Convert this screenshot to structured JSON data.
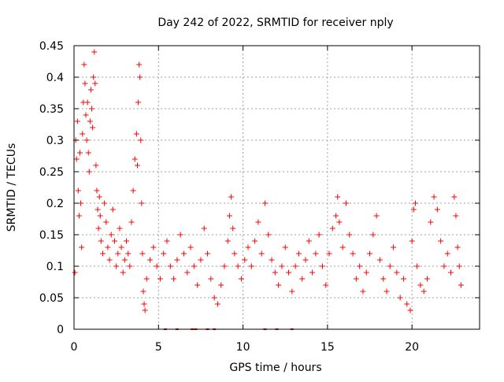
{
  "chart_data": {
    "type": "scatter",
    "title": "Day 242 of 2022, SRMTID for receiver nply",
    "xlabel": "GPS time / hours",
    "ylabel": "SRMTID / TECUs",
    "xlim": [
      0,
      24
    ],
    "ylim": [
      0,
      0.45
    ],
    "xticks": [
      0,
      5,
      10,
      15,
      20
    ],
    "xtick_labels": [
      "0",
      "5",
      "10",
      "15",
      "20"
    ],
    "yticks": [
      0,
      0.05,
      0.1,
      0.15,
      0.2,
      0.25,
      0.3,
      0.35,
      0.4,
      0.45
    ],
    "ytick_labels": [
      "0",
      "0.05",
      "0.1",
      "0.15",
      "0.2",
      "0.25",
      "0.3",
      "0.35",
      "0.4",
      "0.45"
    ],
    "grid": true,
    "marker": "+",
    "color": "#ff0000",
    "series": [
      {
        "name": "SRMTID",
        "points": [
          [
            0.05,
            0.09
          ],
          [
            0.1,
            0.3
          ],
          [
            0.15,
            0.27
          ],
          [
            0.2,
            0.33
          ],
          [
            0.25,
            0.22
          ],
          [
            0.3,
            0.18
          ],
          [
            0.35,
            0.28
          ],
          [
            0.4,
            0.2
          ],
          [
            0.45,
            0.13
          ],
          [
            0.5,
            0.31
          ],
          [
            0.55,
            0.36
          ],
          [
            0.6,
            0.42
          ],
          [
            0.65,
            0.39
          ],
          [
            0.7,
            0.34
          ],
          [
            0.75,
            0.3
          ],
          [
            0.8,
            0.36
          ],
          [
            0.85,
            0.28
          ],
          [
            0.9,
            0.25
          ],
          [
            0.95,
            0.33
          ],
          [
            1.0,
            0.38
          ],
          [
            1.05,
            0.35
          ],
          [
            1.1,
            0.32
          ],
          [
            1.15,
            0.4
          ],
          [
            1.2,
            0.44
          ],
          [
            1.25,
            0.39
          ],
          [
            1.3,
            0.26
          ],
          [
            1.35,
            0.22
          ],
          [
            1.4,
            0.19
          ],
          [
            1.45,
            0.16
          ],
          [
            1.5,
            0.21
          ],
          [
            1.55,
            0.18
          ],
          [
            1.6,
            0.14
          ],
          [
            1.7,
            0.12
          ],
          [
            1.8,
            0.2
          ],
          [
            1.9,
            0.17
          ],
          [
            2.0,
            0.13
          ],
          [
            2.1,
            0.11
          ],
          [
            2.2,
            0.15
          ],
          [
            2.3,
            0.19
          ],
          [
            2.4,
            0.14
          ],
          [
            2.5,
            0.1
          ],
          [
            2.6,
            0.12
          ],
          [
            2.7,
            0.16
          ],
          [
            2.8,
            0.13
          ],
          [
            2.9,
            0.09
          ],
          [
            3.0,
            0.11
          ],
          [
            3.1,
            0.14
          ],
          [
            3.2,
            0.12
          ],
          [
            3.3,
            0.1
          ],
          [
            3.4,
            0.17
          ],
          [
            3.5,
            0.22
          ],
          [
            3.6,
            0.27
          ],
          [
            3.7,
            0.31
          ],
          [
            3.75,
            0.26
          ],
          [
            3.8,
            0.36
          ],
          [
            3.85,
            0.42
          ],
          [
            3.9,
            0.4
          ],
          [
            3.95,
            0.3
          ],
          [
            4.0,
            0.2
          ],
          [
            4.05,
            0.12
          ],
          [
            4.1,
            0.06
          ],
          [
            4.15,
            0.04
          ],
          [
            4.2,
            0.03
          ],
          [
            4.3,
            0.08
          ],
          [
            4.5,
            0.11
          ],
          [
            4.7,
            0.13
          ],
          [
            4.9,
            0.1
          ],
          [
            5.1,
            0.08
          ],
          [
            5.3,
            0.12
          ],
          [
            5.5,
            0.14
          ],
          [
            5.7,
            0.1
          ],
          [
            5.9,
            0.08
          ],
          [
            6.1,
            0.11
          ],
          [
            6.3,
            0.15
          ],
          [
            6.5,
            0.12
          ],
          [
            6.7,
            0.09
          ],
          [
            6.9,
            0.13
          ],
          [
            7.1,
            0.1
          ],
          [
            7.3,
            0.07
          ],
          [
            7.5,
            0.11
          ],
          [
            7.7,
            0.16
          ],
          [
            7.9,
            0.12
          ],
          [
            8.1,
            0.08
          ],
          [
            8.3,
            0.05
          ],
          [
            8.5,
            0.04
          ],
          [
            8.7,
            0.07
          ],
          [
            8.9,
            0.1
          ],
          [
            9.1,
            0.14
          ],
          [
            9.2,
            0.18
          ],
          [
            9.3,
            0.21
          ],
          [
            9.4,
            0.16
          ],
          [
            9.5,
            0.12
          ],
          [
            9.7,
            0.1
          ],
          [
            9.9,
            0.08
          ],
          [
            10.1,
            0.11
          ],
          [
            10.3,
            0.13
          ],
          [
            10.5,
            0.1
          ],
          [
            10.7,
            0.14
          ],
          [
            10.9,
            0.17
          ],
          [
            11.1,
            0.12
          ],
          [
            11.3,
            0.2
          ],
          [
            11.5,
            0.15
          ],
          [
            11.7,
            0.11
          ],
          [
            11.9,
            0.09
          ],
          [
            12.1,
            0.07
          ],
          [
            12.3,
            0.1
          ],
          [
            12.5,
            0.13
          ],
          [
            12.7,
            0.09
          ],
          [
            12.9,
            0.06
          ],
          [
            13.1,
            0.1
          ],
          [
            13.3,
            0.12
          ],
          [
            13.5,
            0.08
          ],
          [
            13.7,
            0.11
          ],
          [
            13.9,
            0.14
          ],
          [
            14.1,
            0.09
          ],
          [
            14.3,
            0.12
          ],
          [
            14.5,
            0.15
          ],
          [
            14.7,
            0.1
          ],
          [
            14.9,
            0.07
          ],
          [
            15.1,
            0.12
          ],
          [
            15.3,
            0.16
          ],
          [
            15.5,
            0.18
          ],
          [
            15.6,
            0.21
          ],
          [
            15.7,
            0.17
          ],
          [
            15.9,
            0.13
          ],
          [
            16.1,
            0.2
          ],
          [
            16.3,
            0.15
          ],
          [
            16.5,
            0.12
          ],
          [
            16.7,
            0.08
          ],
          [
            16.9,
            0.1
          ],
          [
            17.1,
            0.06
          ],
          [
            17.3,
            0.09
          ],
          [
            17.5,
            0.12
          ],
          [
            17.7,
            0.15
          ],
          [
            17.9,
            0.18
          ],
          [
            18.1,
            0.11
          ],
          [
            18.3,
            0.08
          ],
          [
            18.5,
            0.06
          ],
          [
            18.7,
            0.1
          ],
          [
            18.9,
            0.13
          ],
          [
            19.1,
            0.09
          ],
          [
            19.3,
            0.05
          ],
          [
            19.5,
            0.08
          ],
          [
            19.7,
            0.04
          ],
          [
            19.9,
            0.03
          ],
          [
            20.0,
            0.14
          ],
          [
            20.1,
            0.19
          ],
          [
            20.2,
            0.2
          ],
          [
            20.3,
            0.1
          ],
          [
            20.5,
            0.07
          ],
          [
            20.7,
            0.06
          ],
          [
            20.9,
            0.08
          ],
          [
            21.1,
            0.17
          ],
          [
            21.3,
            0.21
          ],
          [
            21.5,
            0.19
          ],
          [
            21.7,
            0.14
          ],
          [
            21.9,
            0.1
          ],
          [
            22.1,
            0.12
          ],
          [
            22.3,
            0.09
          ],
          [
            22.5,
            0.21
          ],
          [
            22.6,
            0.18
          ],
          [
            22.7,
            0.13
          ],
          [
            22.8,
            0.1
          ],
          [
            22.9,
            0.07
          ]
        ]
      }
    ],
    "zero_value_hours": [
      5.4,
      6.1,
      7.0,
      7.2,
      7.9,
      8.3,
      11.3,
      12.0,
      12.9
    ]
  }
}
